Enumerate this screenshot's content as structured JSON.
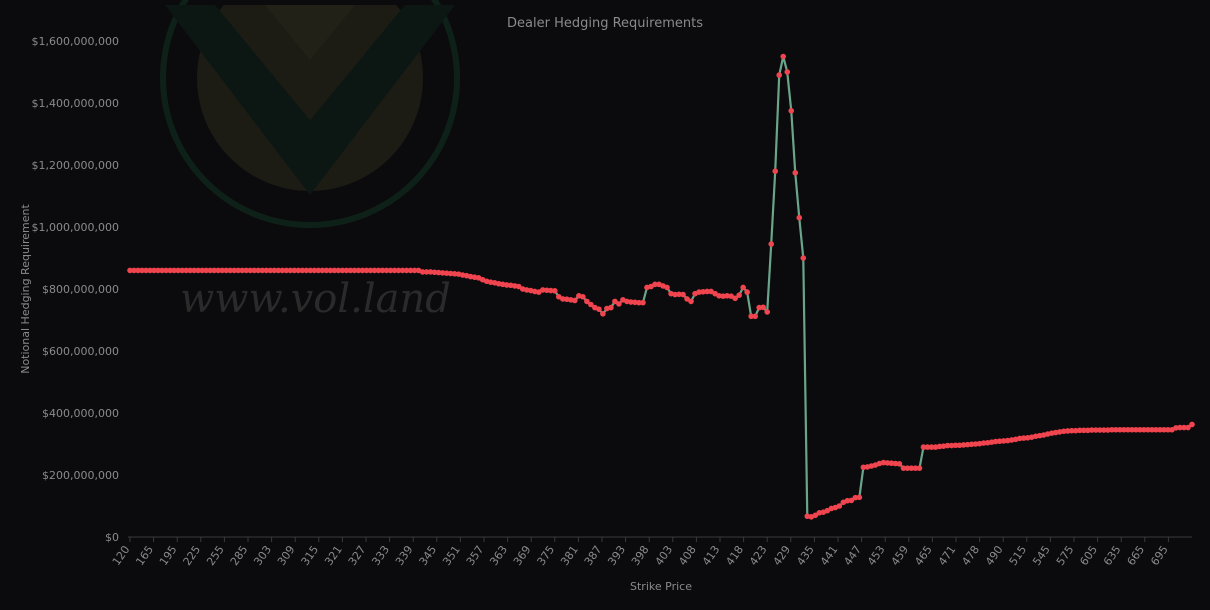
{
  "chart_data": {
    "type": "line",
    "title": "Dealer Hedging Requirements",
    "xlabel": "Strike Price",
    "ylabel": "Notional Hedging Requirement",
    "ylim": [
      0,
      1600000000
    ],
    "yticks": [
      0,
      200000000,
      400000000,
      600000000,
      800000000,
      1000000000,
      1200000000,
      1400000000,
      1600000000
    ],
    "ytick_labels": [
      "$0",
      "$200,000,000",
      "$400,000,000",
      "$600,000,000",
      "$800,000,000",
      "$1,000,000,000",
      "$1,200,000,000",
      "$1,400,000,000",
      "$1,600,000,000"
    ],
    "xtick_labels": [
      "120",
      "165",
      "195",
      "225",
      "255",
      "285",
      "303",
      "309",
      "315",
      "321",
      "327",
      "333",
      "339",
      "345",
      "351",
      "357",
      "363",
      "369",
      "375",
      "381",
      "387",
      "393",
      "398",
      "403",
      "408",
      "413",
      "418",
      "423",
      "429",
      "435",
      "441",
      "447",
      "453",
      "459",
      "465",
      "471",
      "478",
      "490",
      "515",
      "545",
      "575",
      "605",
      "635",
      "665",
      "695"
    ],
    "grid": false,
    "legend": "none",
    "colors": {
      "line": "#6aa58a",
      "marker": "#f0444f",
      "background": "#0b0b0d"
    },
    "watermark": {
      "text": "www.vol.land",
      "icon": "vol-land-logo-icon"
    },
    "values": [
      860000000,
      860000000,
      860000000,
      860000000,
      860000000,
      860000000,
      860000000,
      860000000,
      860000000,
      860000000,
      860000000,
      860000000,
      860000000,
      860000000,
      860000000,
      860000000,
      860000000,
      860000000,
      860000000,
      860000000,
      860000000,
      860000000,
      860000000,
      860000000,
      860000000,
      860000000,
      860000000,
      860000000,
      860000000,
      860000000,
      860000000,
      860000000,
      860000000,
      860000000,
      860000000,
      860000000,
      860000000,
      860000000,
      860000000,
      860000000,
      860000000,
      860000000,
      860000000,
      860000000,
      860000000,
      860000000,
      860000000,
      860000000,
      860000000,
      860000000,
      860000000,
      860000000,
      860000000,
      860000000,
      860000000,
      860000000,
      860000000,
      860000000,
      860000000,
      860000000,
      860000000,
      860000000,
      860000000,
      860000000,
      860000000,
      860000000,
      860000000,
      860000000,
      860000000,
      860000000,
      860000000,
      860000000,
      860000000,
      855000000,
      855000000,
      855000000,
      854000000,
      853000000,
      852000000,
      851000000,
      850000000,
      849000000,
      848000000,
      845000000,
      843000000,
      840000000,
      838000000,
      836000000,
      830000000,
      825000000,
      822000000,
      820000000,
      817000000,
      815000000,
      813000000,
      812000000,
      810000000,
      808000000,
      800000000,
      797000000,
      795000000,
      792000000,
      790000000,
      797000000,
      796000000,
      795000000,
      794000000,
      775000000,
      768000000,
      767000000,
      765000000,
      763000000,
      778000000,
      775000000,
      760000000,
      750000000,
      740000000,
      735000000,
      720000000,
      737000000,
      740000000,
      760000000,
      752000000,
      765000000,
      760000000,
      758000000,
      757000000,
      756000000,
      756000000,
      805000000,
      808000000,
      815000000,
      815000000,
      810000000,
      805000000,
      785000000,
      782000000,
      783000000,
      782000000,
      768000000,
      760000000,
      785000000,
      790000000,
      791000000,
      792000000,
      792000000,
      785000000,
      778000000,
      777000000,
      778000000,
      777000000,
      770000000,
      780000000,
      805000000,
      790000000,
      712000000,
      712000000,
      740000000,
      741000000,
      726000000,
      945000000,
      1180000000,
      1490000000,
      1550000000,
      1500000000,
      1375000000,
      1175000000,
      1030000000,
      900000000,
      67000000,
      65000000,
      70000000,
      78000000,
      80000000,
      85000000,
      92000000,
      95000000,
      100000000,
      112000000,
      117000000,
      118000000,
      127000000,
      128000000,
      225000000,
      226000000,
      229000000,
      232000000,
      237000000,
      240000000,
      239000000,
      238000000,
      237000000,
      236000000,
      222000000,
      222000000,
      222000000,
      222000000,
      222000000,
      290000000,
      290000000,
      290000000,
      290000000,
      292000000,
      293000000,
      295000000,
      295000000,
      296000000,
      296000000,
      297000000,
      298000000,
      299000000,
      300000000,
      301000000,
      303000000,
      304000000,
      306000000,
      308000000,
      309000000,
      310000000,
      311000000,
      313000000,
      315000000,
      318000000,
      319000000,
      320000000,
      322000000,
      325000000,
      327000000,
      329000000,
      332000000,
      335000000,
      337000000,
      339000000,
      341000000,
      342000000,
      343000000,
      343000000,
      344000000,
      344000000,
      344000000,
      345000000,
      345000000,
      345000000,
      345000000,
      345000000,
      346000000,
      346000000,
      346000000,
      346000000,
      346000000,
      346000000,
      346000000,
      346000000,
      346000000,
      346000000,
      346000000,
      346000000,
      346000000,
      346000000,
      346000000,
      346000000,
      352000000,
      353000000,
      353000000,
      353000000,
      363000000
    ]
  }
}
